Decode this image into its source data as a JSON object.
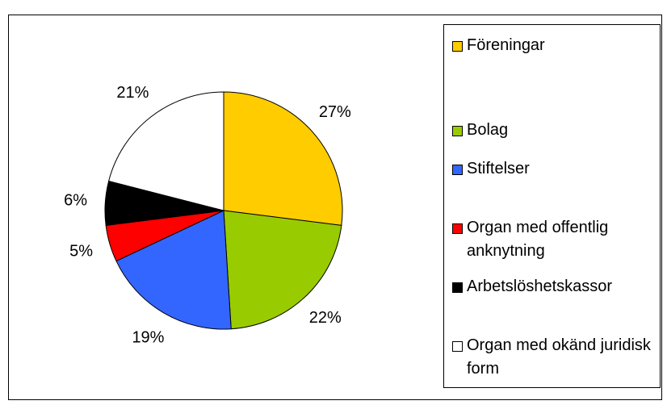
{
  "chart_data": {
    "type": "pie",
    "categories": [
      "Föreningar",
      "Bolag",
      "Stiftelser",
      "Organ med offentlig anknytning",
      "Arbetslöshetskassor",
      "Organ med okänd juridisk form"
    ],
    "values": [
      27,
      22,
      19,
      5,
      6,
      21
    ],
    "value_labels": [
      "27%",
      "22%",
      "19%",
      "5%",
      "6%",
      "21%"
    ],
    "colors": [
      "#FFCC00",
      "#99CC00",
      "#3366FF",
      "#FF0000",
      "#000000",
      "#FFFFFF"
    ],
    "legend": "right"
  }
}
